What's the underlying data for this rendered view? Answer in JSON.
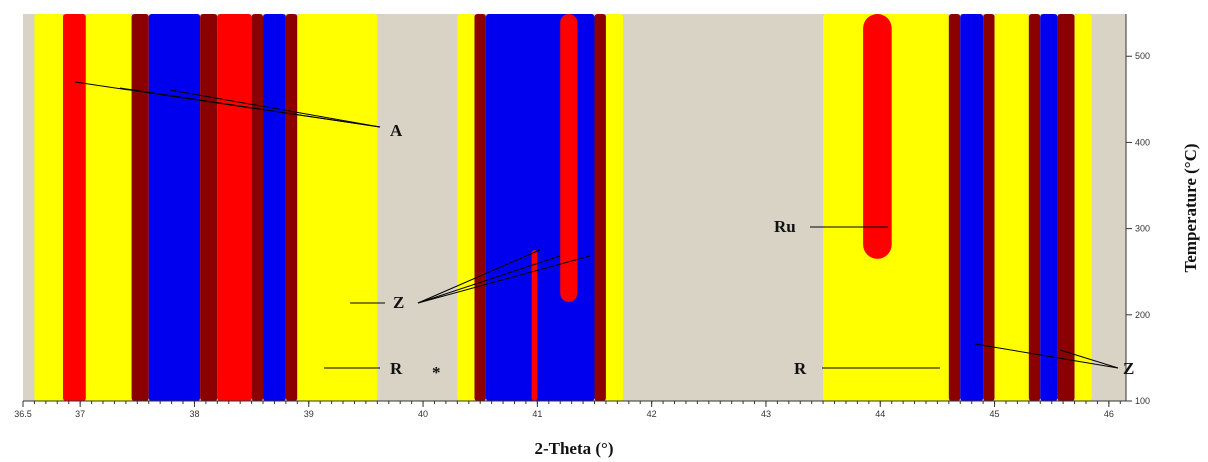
{
  "chart_data": {
    "type": "contour",
    "x_label": "2-Theta (°)",
    "y_label": "Temperature (°C)",
    "xlim": [
      36.5,
      46.15
    ],
    "xticks": [
      36.5,
      37,
      38,
      39,
      40,
      41,
      42,
      43,
      44,
      45,
      46
    ],
    "ylim": [
      100,
      549
    ],
    "yticks": [
      100,
      200,
      300,
      400,
      500
    ],
    "background": "#d8d3c4",
    "stripes": [
      {
        "from": 36.6,
        "to": 36.85,
        "color": "#ffff00"
      },
      {
        "from": 36.85,
        "to": 37.05,
        "color": "#ff0000"
      },
      {
        "from": 37.05,
        "to": 37.45,
        "color": "#ffff00"
      },
      {
        "from": 37.45,
        "to": 37.6,
        "color": "#8b0000"
      },
      {
        "from": 37.6,
        "to": 38.05,
        "color": "#0000ee"
      },
      {
        "from": 38.05,
        "to": 38.2,
        "color": "#8b0000"
      },
      {
        "from": 38.2,
        "to": 38.5,
        "color": "#ff0000"
      },
      {
        "from": 38.5,
        "to": 38.6,
        "color": "#8b0000"
      },
      {
        "from": 38.6,
        "to": 38.8,
        "color": "#0000ee"
      },
      {
        "from": 38.8,
        "to": 38.9,
        "color": "#8b0000"
      },
      {
        "from": 38.9,
        "to": 39.6,
        "color": "#ffff00"
      },
      {
        "from": 40.3,
        "to": 40.45,
        "color": "#ffff00"
      },
      {
        "from": 40.45,
        "to": 40.55,
        "color": "#8b0000"
      },
      {
        "from": 40.55,
        "to": 41.5,
        "color": "#0000ee"
      },
      {
        "from": 41.2,
        "to": 41.35,
        "color": "#ff0000",
        "bottom": 215,
        "top": 549
      },
      {
        "from": 40.95,
        "to": 41.0,
        "color": "#ff0000",
        "bottom": 100,
        "top": 275
      },
      {
        "from": 41.5,
        "to": 41.6,
        "color": "#8b0000"
      },
      {
        "from": 41.6,
        "to": 41.75,
        "color": "#ffff00"
      },
      {
        "from": 43.5,
        "to": 44.6,
        "color": "#ffff00"
      },
      {
        "from": 43.85,
        "to": 44.1,
        "color": "#ff0000",
        "bottom": 265,
        "top": 549
      },
      {
        "from": 44.6,
        "to": 44.7,
        "color": "#8b0000"
      },
      {
        "from": 44.7,
        "to": 44.9,
        "color": "#0000ee"
      },
      {
        "from": 44.9,
        "to": 45.0,
        "color": "#8b0000"
      },
      {
        "from": 45.0,
        "to": 45.3,
        "color": "#ffff00"
      },
      {
        "from": 45.3,
        "to": 45.4,
        "color": "#8b0000"
      },
      {
        "from": 45.4,
        "to": 45.55,
        "color": "#0000ee"
      },
      {
        "from": 45.55,
        "to": 45.7,
        "color": "#8b0000"
      },
      {
        "from": 45.7,
        "to": 45.85,
        "color": "#ffff00"
      }
    ],
    "annotations": [
      "A",
      "Z",
      "R",
      "*",
      "Ru",
      "R",
      "Z"
    ]
  }
}
